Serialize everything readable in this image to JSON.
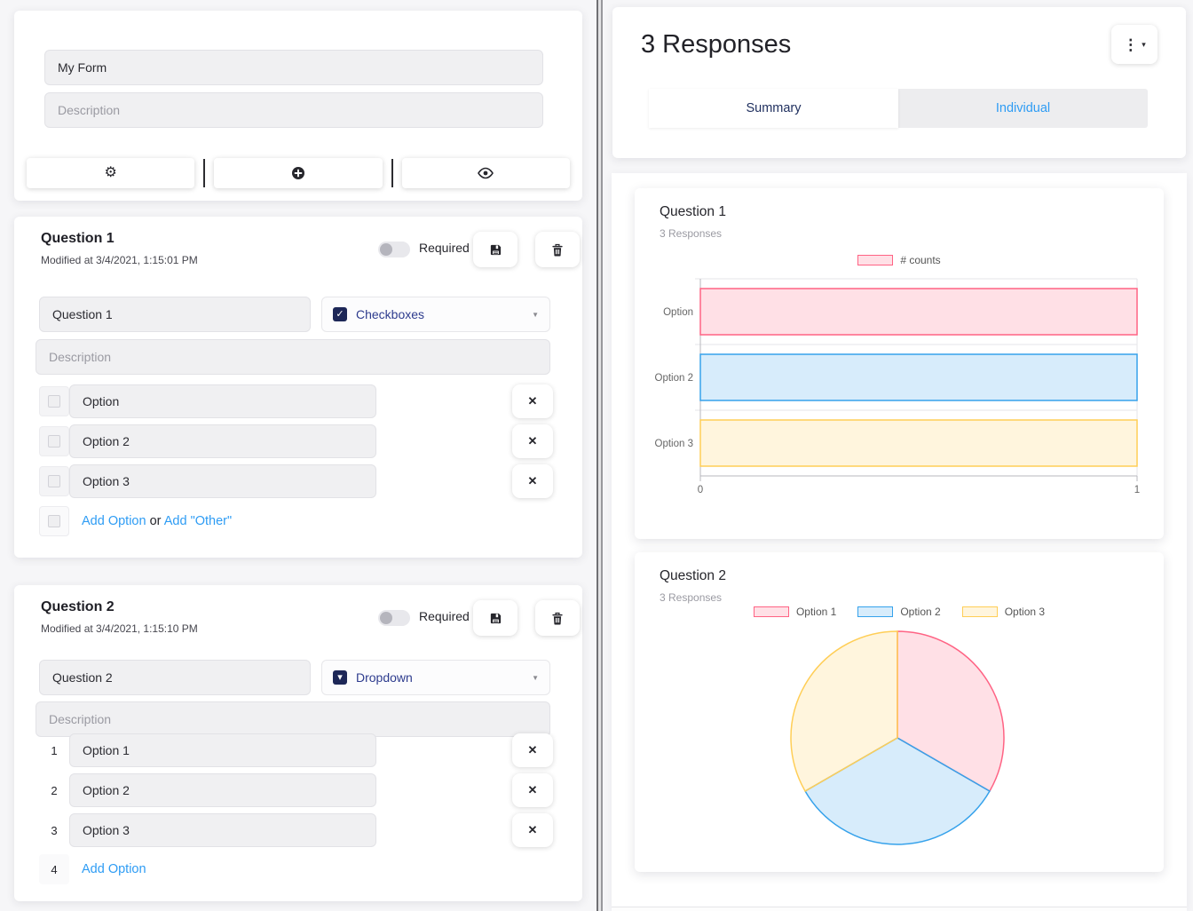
{
  "colors": {
    "navy": "#1d2757",
    "select_text": "#2e3c8e",
    "link": "#2e9cf4",
    "tab_active": "#20305f"
  },
  "left_panel": {
    "form": {
      "title_value": "My Form",
      "description_placeholder": "Description",
      "toolbar_icons": [
        "gear-icon",
        "plus-circle-icon",
        "eye-icon"
      ]
    },
    "questions": [
      {
        "title": "Question 1",
        "modified": "Modified at 3/4/2021, 1:15:01 PM",
        "required_label": "Required",
        "name_value": "Question 1",
        "type": "Checkboxes",
        "description_placeholder": "Description",
        "options": [
          "Option",
          "Option 2",
          "Option 3"
        ],
        "add_option": "Add Option",
        "or": "or",
        "add_other": "Add \"Other\""
      },
      {
        "title": "Question 2",
        "modified": "Modified at 3/4/2021, 1:15:10 PM",
        "required_label": "Required",
        "name_value": "Question 2",
        "type": "Dropdown",
        "description_placeholder": "Description",
        "options": [
          "Option 1",
          "Option 2",
          "Option 3"
        ],
        "option_prefixes": [
          "1",
          "2",
          "3"
        ],
        "add_prefix": "4",
        "add_option": "Add Option"
      }
    ]
  },
  "right_panel": {
    "title": "3 Responses",
    "tabs": {
      "summary": "Summary",
      "individual": "Individual"
    }
  },
  "chart_data": [
    {
      "type": "bar",
      "orientation": "horizontal",
      "title": "Question 1",
      "subtitle": "3 Responses",
      "categories": [
        "Option",
        "Option 2",
        "Option 3"
      ],
      "series": [
        {
          "name": "# counts",
          "values": [
            1,
            1,
            1
          ]
        }
      ],
      "xlim": [
        0,
        1
      ],
      "xticks": [
        "0",
        "1"
      ],
      "grid": true,
      "legend_position": "top",
      "bar_colors": {
        "fill": [
          "rgba(255,99,132,0.2)",
          "rgba(54,162,235,0.2)",
          "rgba(255,206,86,0.2)"
        ],
        "border": [
          "rgba(255,99,132,1)",
          "rgba(54,162,235,1)",
          "rgba(255,206,86,1)"
        ]
      }
    },
    {
      "type": "pie",
      "title": "Question 2",
      "subtitle": "3 Responses",
      "labels": [
        "Option 1",
        "Option 2",
        "Option 3"
      ],
      "values": [
        1,
        1,
        1
      ],
      "legend_position": "top",
      "slice_colors": {
        "fill": [
          "rgba(255,99,132,0.2)",
          "rgba(54,162,235,0.2)",
          "rgba(255,206,86,0.2)"
        ],
        "border": [
          "rgba(255,99,132,1)",
          "rgba(54,162,235,1)",
          "rgba(255,206,86,1)"
        ]
      }
    }
  ]
}
